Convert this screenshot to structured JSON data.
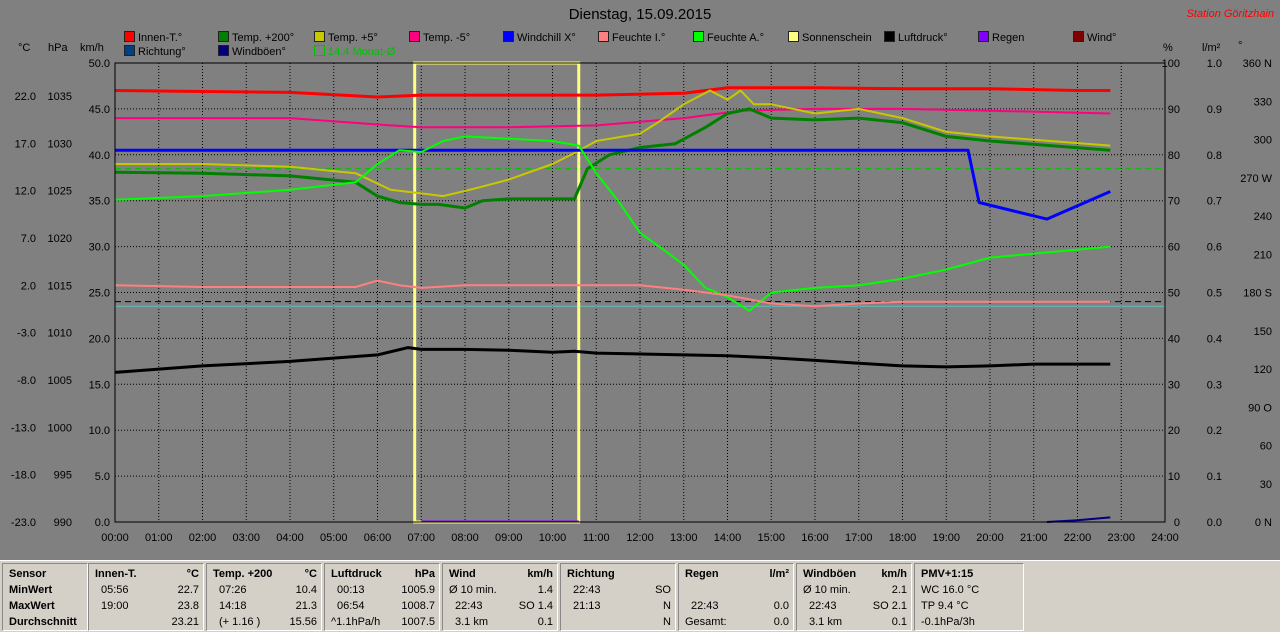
{
  "title": "Dienstag, 15.09.2015",
  "station": "Station Göritzhain",
  "colors": {
    "background": "#808080",
    "innen": "#ff0000",
    "temp200": "#008000",
    "temp5": "#c8c800",
    "tempm5": "#ff0080",
    "windchill": "#0000ff",
    "feuchte_i": "#ff8080",
    "feuchte_a": "#00ff00",
    "sonnenschein": "#ffff80",
    "luftdruck": "#000000",
    "regen": "#8000ff",
    "wind": "#800000",
    "richtung": "#004080",
    "windboeen": "#000080",
    "monat": "#00c000"
  },
  "legend": [
    {
      "label": "Innen-T.°",
      "color": "#ff0000"
    },
    {
      "label": "Temp. +200°",
      "color": "#008000"
    },
    {
      "label": "Temp. +5°",
      "color": "#c8c800"
    },
    {
      "label": "Temp. -5°",
      "color": "#ff0080"
    },
    {
      "label": "Windchill X°",
      "color": "#0000ff"
    },
    {
      "label": "Feuchte I.°",
      "color": "#ff8080"
    },
    {
      "label": "Feuchte A.°",
      "color": "#00ff00"
    },
    {
      "label": "Sonnenschein",
      "color": "#ffff80"
    },
    {
      "label": "Luftdruck°",
      "color": "#000000"
    },
    {
      "label": "Regen",
      "color": "#8000ff"
    },
    {
      "label": "Wind°",
      "color": "#800000"
    },
    {
      "label": "Richtung°",
      "color": "#004080"
    },
    {
      "label": "Windböen°",
      "color": "#000080"
    },
    {
      "label": "14.4 Monat-Ø",
      "color": "#00c000"
    }
  ],
  "axis_units": {
    "temp": "°C",
    "press": "hPa",
    "wind": "km/h",
    "hum": "%",
    "rain": "l/m²",
    "dir": "°"
  },
  "chart_data": {
    "type": "line",
    "x_ticks": [
      "00:00",
      "01:00",
      "02:00",
      "03:00",
      "04:00",
      "05:00",
      "06:00",
      "07:00",
      "08:00",
      "09:00",
      "10:00",
      "11:00",
      "12:00",
      "13:00",
      "14:00",
      "15:00",
      "16:00",
      "17:00",
      "18:00",
      "19:00",
      "20:00",
      "21:00",
      "22:00",
      "23:00",
      "24:00"
    ],
    "axes": {
      "temp_c": [
        "22.0",
        "17.0",
        "12.0",
        "7.0",
        "2.0",
        "-3.0",
        "-8.0",
        "-13.0",
        "-18.0",
        "-23.0"
      ],
      "press_hpa": [
        "1035",
        "1030",
        "1025",
        "1020",
        "1015",
        "1010",
        "1005",
        "1000",
        "995",
        "990"
      ],
      "wind_kmh": [
        "50.0",
        "45.0",
        "40.0",
        "35.0",
        "30.0",
        "25.0",
        "20.0",
        "15.0",
        "10.0",
        "5.0",
        "0.0"
      ],
      "hum_pct": [
        "100",
        "90",
        "80",
        "70",
        "60",
        "50",
        "40",
        "30",
        "20",
        "10",
        "0"
      ],
      "rain_lm2": [
        "1.0",
        "0.9",
        "0.8",
        "0.7",
        "0.6",
        "0.5",
        "0.4",
        "0.3",
        "0.2",
        "0.1",
        "0.0"
      ],
      "dir_deg": [
        "360 N",
        "330",
        "300",
        "270 W",
        "240",
        "210",
        "180 S",
        "150",
        "120",
        "90 O",
        "60",
        "30",
        "0 N"
      ]
    },
    "ylim_wind_scale": [
      0,
      50
    ],
    "ref_lines": [
      {
        "name": "14.4 Monat-Ø",
        "y": 38.5,
        "style": "dashed",
        "color": "#00c000"
      },
      {
        "name": "",
        "y": 24.0,
        "style": "dashed",
        "color": "#000000"
      },
      {
        "name": "",
        "y": 23.5,
        "style": "solid",
        "color": "#60c0c0"
      }
    ],
    "sunshine": {
      "start": 6.85,
      "end": 10.6,
      "top": 50.0
    },
    "series": [
      {
        "name": "Innen-T.",
        "color": "#ff0000",
        "width": 3,
        "x": [
          0,
          2,
          4,
          6,
          7,
          9,
          11,
          13,
          14,
          16,
          18,
          20,
          22,
          22.75
        ],
        "y": [
          47.0,
          46.9,
          46.8,
          46.3,
          46.5,
          46.5,
          46.5,
          46.7,
          47.3,
          47.3,
          47.2,
          47.2,
          47.0,
          47.0
        ]
      },
      {
        "name": "Temp. -5°",
        "color": "#ff0080",
        "width": 2,
        "x": [
          0,
          2,
          4,
          6,
          7,
          9,
          11,
          13,
          14.3,
          16,
          18,
          20,
          22.75
        ],
        "y": [
          44.0,
          44.0,
          44.0,
          43.3,
          43.0,
          43.0,
          43.2,
          44.0,
          44.8,
          45.0,
          45.0,
          44.8,
          44.5
        ]
      },
      {
        "name": "Temp. +5°",
        "color": "#c8c800",
        "width": 2,
        "x": [
          0,
          2,
          4,
          5.5,
          6.3,
          7,
          7.5,
          8.2,
          9,
          10,
          10.5,
          11,
          12,
          12.4,
          13,
          13.6,
          14,
          14.3,
          14.6,
          15,
          16,
          17,
          18,
          19,
          20,
          22.75
        ],
        "y": [
          39.0,
          39.0,
          38.7,
          38.0,
          36.2,
          35.8,
          35.5,
          36.3,
          37.3,
          39.0,
          40.2,
          41.5,
          42.3,
          43.5,
          45.5,
          47.0,
          46.0,
          47.0,
          45.5,
          45.5,
          44.5,
          45.0,
          44.0,
          42.5,
          42.0,
          41.0
        ]
      },
      {
        "name": "Temp. +200°",
        "color": "#008000",
        "width": 3,
        "x": [
          0,
          2,
          4,
          5.5,
          6,
          6.5,
          7,
          7.4,
          8,
          8.4,
          9,
          10,
          10.5,
          10.8,
          11.3,
          12,
          12.8,
          13.5,
          14,
          14.5,
          15,
          16,
          17,
          18,
          19,
          20,
          22.75
        ],
        "y": [
          38.1,
          38.0,
          37.7,
          37.0,
          35.5,
          34.8,
          34.6,
          34.6,
          34.2,
          35.0,
          35.2,
          35.2,
          35.2,
          38.5,
          40.0,
          40.8,
          41.2,
          43.0,
          44.5,
          45.0,
          44.0,
          43.8,
          44.0,
          43.5,
          42.0,
          41.5,
          40.5
        ]
      },
      {
        "name": "Windchill X°",
        "color": "#0000ff",
        "width": 3,
        "x": [
          0,
          19.5,
          19.75,
          21.3,
          22.75
        ],
        "y": [
          40.5,
          40.5,
          34.8,
          33.0,
          36.0
        ]
      },
      {
        "name": "Feuchte A.°",
        "color": "#00ff00",
        "width": 2,
        "x": [
          0,
          2,
          4,
          5.5,
          6,
          6.5,
          7,
          7.5,
          8,
          10,
          10.6,
          11,
          11.5,
          12,
          12.5,
          13,
          13.5,
          14,
          14.5,
          15,
          16,
          17,
          18,
          19,
          20,
          22.75
        ],
        "y": [
          35.1,
          35.5,
          36.2,
          37.0,
          39.0,
          40.5,
          40.3,
          41.5,
          42.0,
          41.5,
          41.0,
          38.0,
          35.0,
          31.5,
          29.8,
          28.0,
          25.5,
          24.5,
          23.0,
          25.0,
          25.5,
          25.8,
          26.5,
          27.5,
          28.8,
          30.0
        ]
      },
      {
        "name": "Feuchte I.°",
        "color": "#ff8080",
        "width": 2,
        "x": [
          0,
          2,
          4,
          5.5,
          6,
          6.5,
          7,
          8,
          9,
          10,
          11,
          12,
          13,
          14,
          15,
          16,
          17,
          18,
          20,
          22.75
        ],
        "y": [
          25.8,
          25.6,
          25.6,
          25.6,
          26.3,
          25.8,
          25.5,
          25.8,
          25.8,
          25.8,
          25.8,
          25.8,
          25.3,
          24.7,
          23.8,
          23.5,
          23.8,
          24.0,
          24.0,
          24.0
        ]
      },
      {
        "name": "Luftdruck°",
        "color": "#000000",
        "width": 3,
        "x": [
          0,
          2,
          4,
          6,
          6.7,
          7,
          8,
          9,
          10,
          10.5,
          11,
          12,
          13,
          14,
          15,
          16,
          17,
          18,
          19,
          20,
          21,
          22,
          22.75
        ],
        "y": [
          16.3,
          17.0,
          17.5,
          18.2,
          19.0,
          18.8,
          18.8,
          18.7,
          18.5,
          18.6,
          18.4,
          18.3,
          18.2,
          18.1,
          17.9,
          17.6,
          17.3,
          17.0,
          16.9,
          17.0,
          17.2,
          17.2,
          17.2
        ]
      },
      {
        "name": "Windböen°",
        "color": "#000080",
        "width": 2,
        "x": [
          21.3,
          22.0,
          22.75
        ],
        "y": [
          0.0,
          0.2,
          0.5
        ]
      },
      {
        "name": "Regen",
        "color": "#8000ff",
        "width": 2,
        "x": [
          7.0,
          10.6
        ],
        "y": [
          0.05,
          0.05
        ]
      }
    ]
  },
  "stats": {
    "sensor": {
      "h": "Sensor",
      "r1": "MinWert",
      "r2": "MaxWert",
      "r3": "Durchschnitt"
    },
    "innen": {
      "h1": "Innen-T.",
      "h2": "°C",
      "t1": "05:56",
      "v1": "22.7",
      "t2": "19:00",
      "v2": "23.8",
      "v3": "23.21"
    },
    "temp200": {
      "h1": "Temp. +200",
      "h2": "°C",
      "t1": "07:26",
      "v1": "10.4",
      "t2": "14:18",
      "v2": "21.3",
      "t3": "(+ 1.16 )",
      "v3": "15.56"
    },
    "luftdruck": {
      "h1": "Luftdruck",
      "h2": "hPa",
      "t1": "00:13",
      "v1": "1005.9",
      "t2": "06:54",
      "v2": "1008.7",
      "t3": "^1.1hPa/h",
      "v3": "1007.5"
    },
    "wind": {
      "h1": "Wind",
      "h2": "km/h",
      "t1": "Ø 10 min.",
      "v1": "1.4",
      "t2": "22:43",
      "v2": "SO 1.4",
      "t3": "3.1 km",
      "v3": "0.1"
    },
    "richtung": {
      "h1": "Richtung",
      "t1": "22:43",
      "v1": "SO",
      "t2": "21:13",
      "v2": "N",
      "v3": "N"
    },
    "regen": {
      "h1": "Regen",
      "h2": "l/m²",
      "t2": "22:43",
      "v2": "0.0",
      "t3": "Gesamt:",
      "v3": "0.0"
    },
    "windboeen": {
      "h1": "Windböen",
      "h2": "km/h",
      "t1": "Ø 10 min.",
      "v1": "2.1",
      "t2": "22:43",
      "v2": "SO 2.1",
      "t3": "3.1 km",
      "v3": "0.1"
    },
    "pmv": {
      "h1": "PMV+1:15",
      "l1": "WC 16.0 °C",
      "l2": "TP 9.4 °C",
      "l3": "-0.1hPa/3h"
    }
  }
}
